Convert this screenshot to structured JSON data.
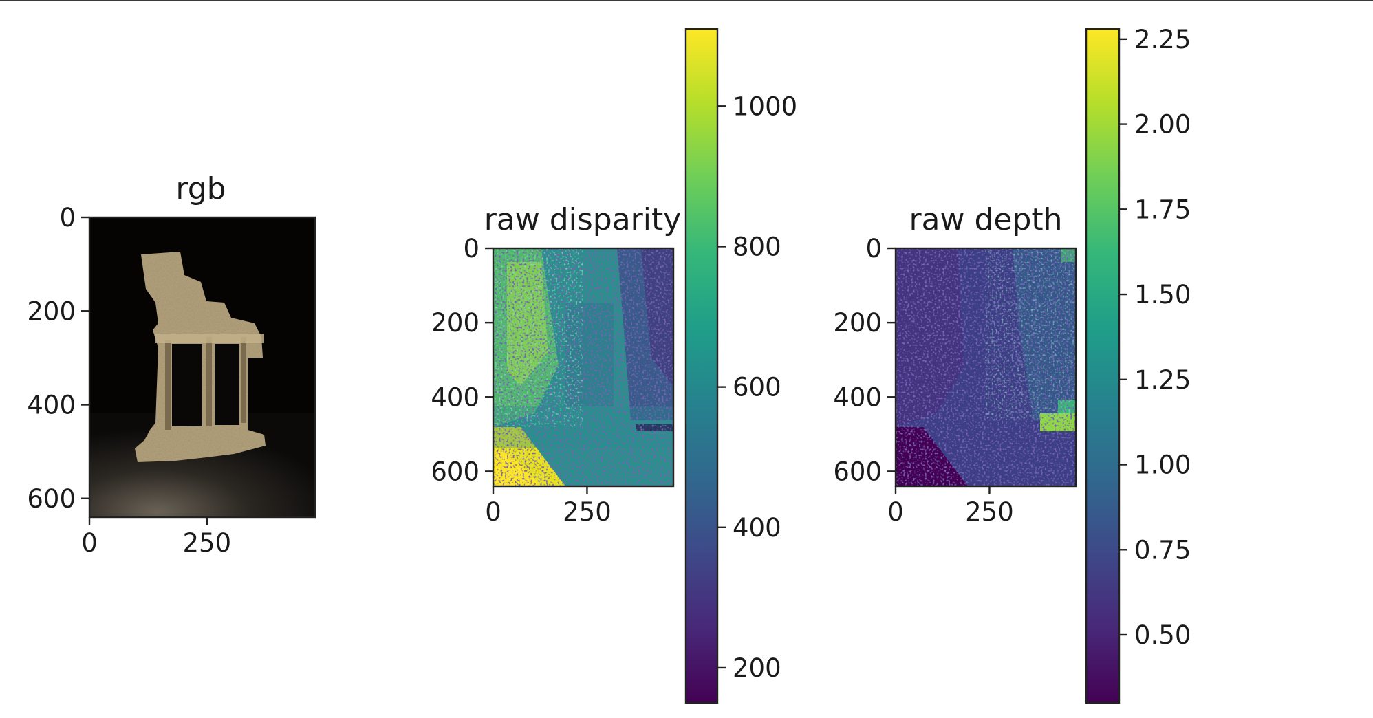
{
  "chart_data": [
    {
      "type": "heatmap",
      "title": "rgb",
      "xticks": [
        0,
        250
      ],
      "yticks": [
        0,
        200,
        400,
        600
      ],
      "xlim": [
        0,
        480
      ],
      "ylim": [
        640,
        0
      ],
      "content": "color photograph of ruined temple model"
    },
    {
      "type": "heatmap",
      "title": "raw disparity",
      "xticks": [
        0,
        250
      ],
      "yticks": [
        0,
        200,
        400,
        600
      ],
      "xlim": [
        0,
        480
      ],
      "ylim": [
        640,
        0
      ],
      "colormap": "viridis",
      "colorbar": {
        "min": 150,
        "max": 1110,
        "ticks": [
          200,
          400,
          600,
          800,
          1000
        ]
      }
    },
    {
      "type": "heatmap",
      "title": "raw depth",
      "xticks": [
        0,
        250
      ],
      "yticks": [
        0,
        200,
        400,
        600
      ],
      "xlim": [
        0,
        480
      ],
      "ylim": [
        640,
        0
      ],
      "colormap": "viridis",
      "colorbar": {
        "min": 0.3,
        "max": 2.28,
        "ticks": [
          0.5,
          0.75,
          1.0,
          1.25,
          1.5,
          1.75,
          2.0,
          2.25
        ],
        "tick_labels": [
          "0.50",
          "0.75",
          "1.00",
          "1.25",
          "1.50",
          "1.75",
          "2.00",
          "2.25"
        ]
      }
    }
  ],
  "colors": {
    "viridis": [
      "#440154",
      "#482878",
      "#3e4989",
      "#31688e",
      "#26828e",
      "#1f9e89",
      "#35b779",
      "#6ece58",
      "#b5de2b",
      "#fde725"
    ]
  }
}
